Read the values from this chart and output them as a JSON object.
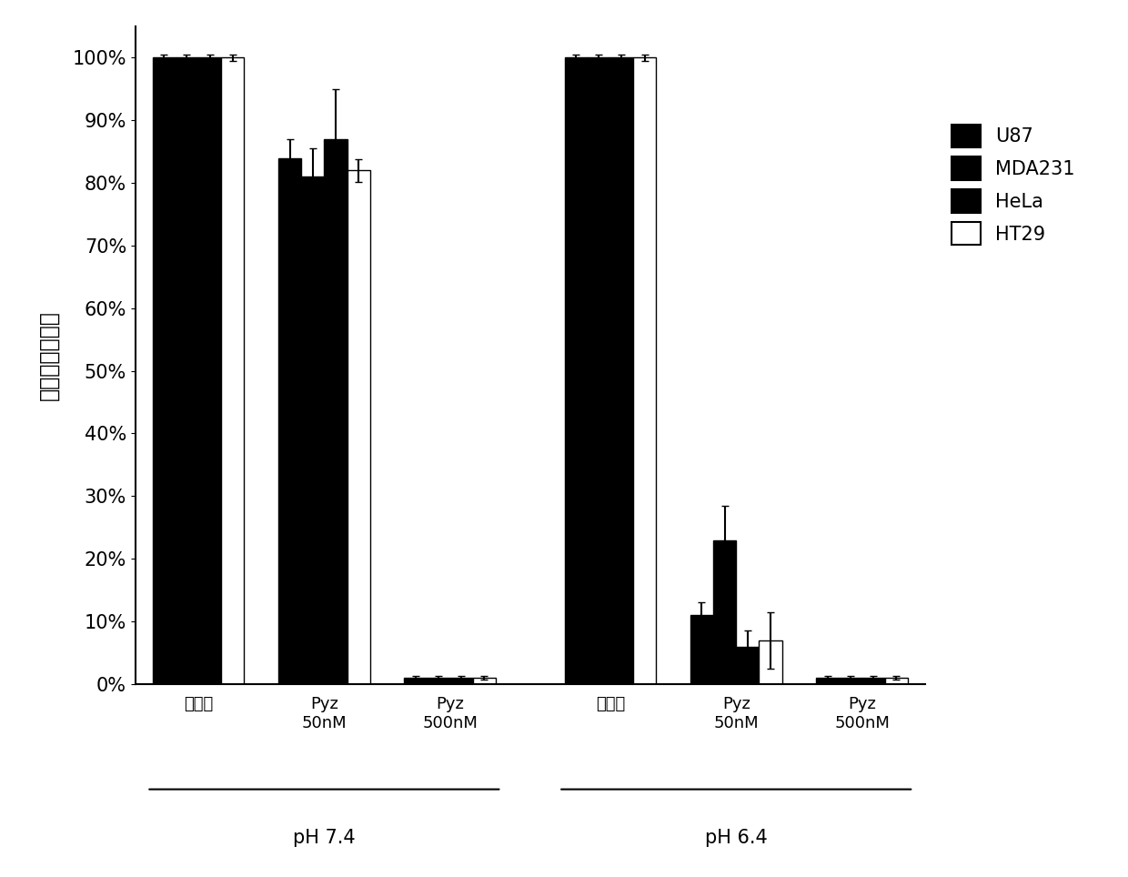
{
  "title": "",
  "ylabel": "细胞相对存活率",
  "ylim": [
    0,
    1.05
  ],
  "yticks": [
    0.0,
    0.1,
    0.2,
    0.3,
    0.4,
    0.5,
    0.6,
    0.7,
    0.8,
    0.9,
    1.0
  ],
  "ytick_labels": [
    "0%",
    "10%",
    "20%",
    "30%",
    "40%",
    "50%",
    "60%",
    "70%",
    "80%",
    "90%",
    "100%"
  ],
  "group_labels": [
    "对照组",
    "Pyz\n50nM",
    "Pyz\n500nM",
    "对照组",
    "Pyz\n50nM",
    "Pyz\n500nM"
  ],
  "ph_labels": [
    "pH 7.4",
    "pH 6.4"
  ],
  "series_labels": [
    "U87",
    "MDA231",
    "HeLa",
    "HT29"
  ],
  "series_colors": [
    "#000000",
    "#000000",
    "#000000",
    "#ffffff"
  ],
  "series_edgecolors": [
    "#000000",
    "#000000",
    "#000000",
    "#000000"
  ],
  "values": [
    [
      1.0,
      0.84,
      0.01,
      1.0,
      0.11,
      0.01
    ],
    [
      1.0,
      0.81,
      0.01,
      1.0,
      0.23,
      0.01
    ],
    [
      1.0,
      0.87,
      0.01,
      1.0,
      0.06,
      0.01
    ],
    [
      1.0,
      0.82,
      0.01,
      1.0,
      0.07,
      0.01
    ]
  ],
  "errors": [
    [
      0.005,
      0.03,
      0.003,
      0.005,
      0.02,
      0.003
    ],
    [
      0.005,
      0.045,
      0.003,
      0.005,
      0.055,
      0.003
    ],
    [
      0.005,
      0.08,
      0.003,
      0.005,
      0.025,
      0.003
    ],
    [
      0.005,
      0.018,
      0.003,
      0.005,
      0.045,
      0.003
    ]
  ],
  "bar_width": 0.2,
  "background_color": "#ffffff",
  "figsize": [
    12.4,
    9.64
  ],
  "dpi": 100
}
